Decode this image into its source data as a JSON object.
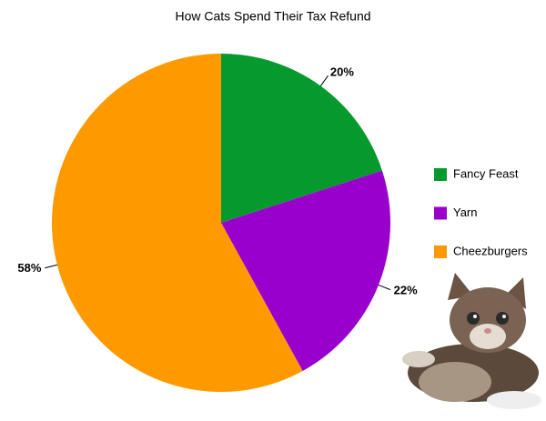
{
  "chart_data": {
    "type": "pie",
    "title": "How Cats Spend Their Tax Refund",
    "categories": [
      "Fancy Feast",
      "Yarn",
      "Cheezburgers"
    ],
    "values": [
      20,
      22,
      58
    ],
    "value_labels": [
      "20%",
      "22%",
      "58%"
    ],
    "colors": [
      "#069a2e",
      "#9900cc",
      "#ff9900"
    ],
    "legend": "right"
  }
}
